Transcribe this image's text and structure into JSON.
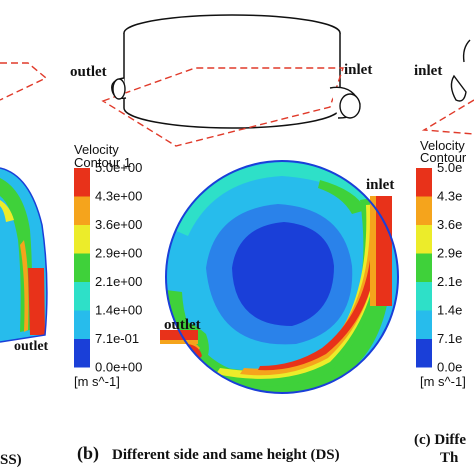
{
  "panel_left": {
    "outlet_label": "outlet",
    "caption_fragment": "SS)"
  },
  "panel_center": {
    "top_outlet_label": "outlet",
    "top_inlet_label": "inlet",
    "contour_inlet_label": "inlet",
    "contour_outlet_label": "outlet",
    "caption_letter": "(b)",
    "caption_text": "Different side and same height (DS)"
  },
  "panel_right": {
    "top_inlet_label": "inlet",
    "caption_line1": "(c) Diffe",
    "caption_line2": "Th"
  },
  "legend": {
    "title_line1": "Velocity",
    "title_line2": "Contour 1",
    "values": [
      "5.0e+00",
      "4.3e+00",
      "3.6e+00",
      "2.9e+00",
      "2.1e+00",
      "1.4e+00",
      "7.1e-01",
      "0.0e+00"
    ],
    "colors": [
      "#e8321a",
      "#f5a41c",
      "#ecec2a",
      "#3fd13a",
      "#2ee0c8",
      "#27bcec",
      "#2a82ea",
      "#1a3fd8"
    ],
    "unit": "[m s^-1]"
  },
  "legend_right": {
    "title_line1": "Velocity",
    "title_line2": "Contour",
    "values": [
      "5.0e",
      "4.3e",
      "3.6e",
      "2.9e",
      "2.1e",
      "1.4e",
      "7.1e",
      "0.0e"
    ],
    "unit": "[m s^-1]"
  }
}
